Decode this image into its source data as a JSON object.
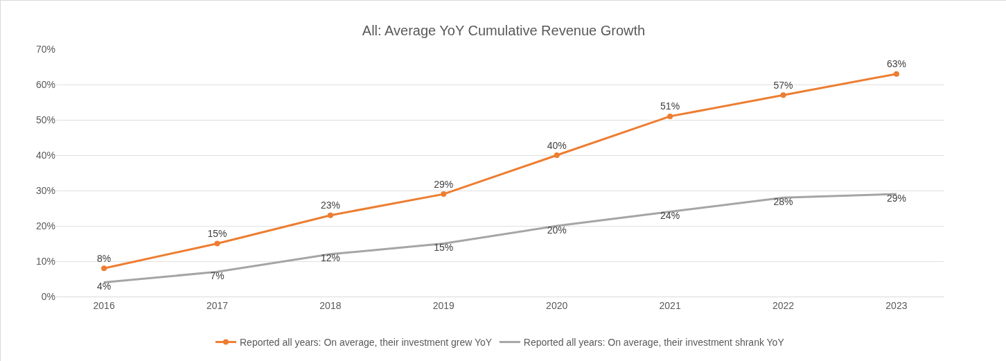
{
  "chart_data": {
    "type": "line",
    "title": "All: Average YoY Cumulative Revenue Growth",
    "categories": [
      "2016",
      "2017",
      "2018",
      "2019",
      "2020",
      "2021",
      "2022",
      "2023"
    ],
    "series": [
      {
        "name": "Reported all years: On average, their investment grew YoY",
        "color": "#ed7d31",
        "marker": "circle",
        "values": [
          8,
          15,
          23,
          29,
          40,
          51,
          57,
          63
        ],
        "value_labels": [
          "8%",
          "15%",
          "23%",
          "29%",
          "40%",
          "51%",
          "57%",
          "63%"
        ]
      },
      {
        "name": "Reported all years: On average, their investment shrank YoY",
        "color": "#a5a5a5",
        "marker": "none",
        "values": [
          4,
          7,
          12,
          15,
          20,
          24,
          28,
          29
        ],
        "value_labels": [
          "4%",
          "7%",
          "12%",
          "15%",
          "20%",
          "24%",
          "28%",
          "29%"
        ]
      }
    ],
    "ylim": [
      0,
      70
    ],
    "yticks": [
      {
        "value": 0,
        "label": "0%"
      },
      {
        "value": 10,
        "label": "10%"
      },
      {
        "value": 20,
        "label": "20%"
      },
      {
        "value": 30,
        "label": "30%"
      },
      {
        "value": 40,
        "label": "40%"
      },
      {
        "value": 50,
        "label": "50%"
      },
      {
        "value": 60,
        "label": "60%"
      },
      {
        "value": 70,
        "label": "70%"
      }
    ],
    "grid": "y",
    "legend": "bottom",
    "line_style": "solid"
  }
}
